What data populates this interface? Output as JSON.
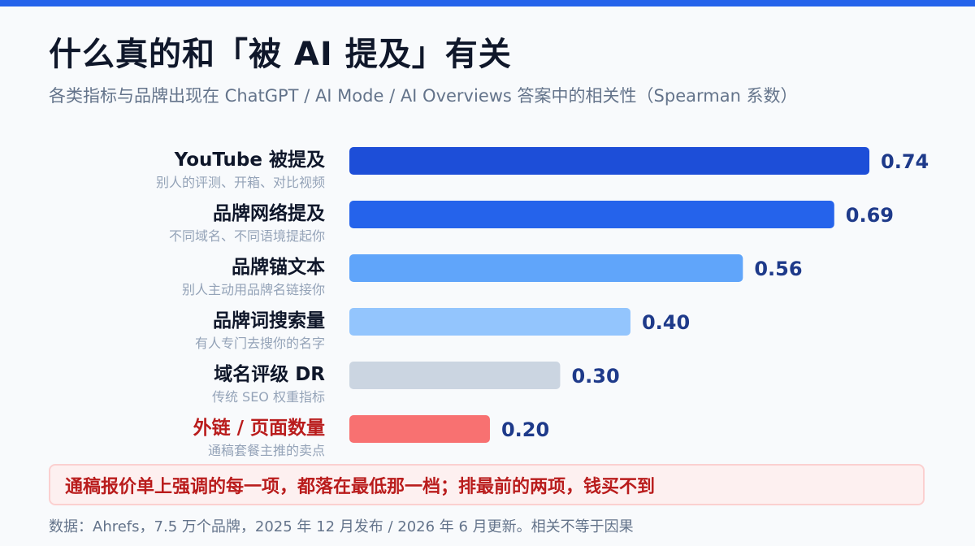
{
  "title": "什么真的和「被 AI 提及」有关",
  "subtitle": "各类指标与品牌出现在 ChatGPT / AI Mode / AI Overviews 答案中的相关性（Spearman 系数）",
  "chart_data": {
    "type": "bar",
    "orientation": "horizontal",
    "xlim": [
      0,
      0.74
    ],
    "grid": false,
    "value_labels_shown": true,
    "categories": [
      "YouTube 被提及",
      "品牌网络提及",
      "品牌锚文本",
      "品牌词搜索量",
      "域名评级 DR",
      "外链 / 页面数量"
    ],
    "category_notes": [
      "别人的评测、开箱、对比视频",
      "不同域名、不同语境提起你",
      "别人主动用品牌名链接你",
      "有人专门去搜你的名字",
      "传统 SEO 权重指标",
      "通稿套餐主推的卖点"
    ],
    "values": [
      0.74,
      0.69,
      0.56,
      0.4,
      0.3,
      0.2
    ],
    "value_labels": [
      "0.74",
      "0.69",
      "0.56",
      "0.40",
      "0.30",
      "0.20"
    ],
    "bar_colors": [
      "#1d4ed8",
      "#2563eb",
      "#60a5fa",
      "#93c5fd",
      "#cbd5e1",
      "#f87171"
    ],
    "category_label_colors": [
      "#0f172a",
      "#0f172a",
      "#0f172a",
      "#0f172a",
      "#0f172a",
      "#b91c1c"
    ],
    "value_label_color": "#1e3a8a"
  },
  "callout": "通稿报价单上强调的每一项，都落在最低那一档；排最前的两项，钱买不到",
  "source": "数据：Ahrefs，7.5 万个品牌，2025 年 12 月发布 / 2026 年 6 月更新。相关不等于因果"
}
